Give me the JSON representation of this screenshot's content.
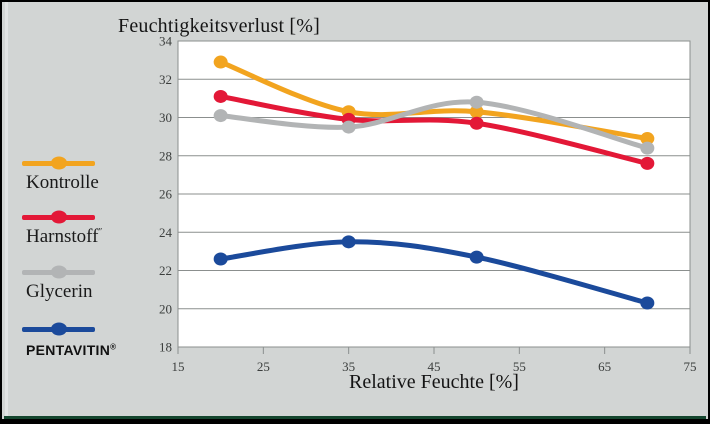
{
  "chart_data": {
    "type": "line",
    "title": "Feuchtigkeitsverlust [%]",
    "xlabel": "Relative Feuchte [%]",
    "ylabel": "",
    "x": [
      20,
      35,
      50,
      70
    ],
    "xlim": [
      15,
      75
    ],
    "ylim": [
      18,
      34
    ],
    "x_ticks": [
      15,
      25,
      35,
      45,
      55,
      65,
      75
    ],
    "y_ticks": [
      18,
      20,
      22,
      24,
      26,
      28,
      30,
      32,
      34
    ],
    "grid": true,
    "smooth_lines": true,
    "legend_position": "left",
    "series": [
      {
        "name": "Kontrolle",
        "mark": "",
        "color": "#F2A41F",
        "values": [
          32.9,
          30.3,
          30.3,
          28.9
        ]
      },
      {
        "name": "Harnstoff",
        "mark": "″",
        "color": "#E31837",
        "values": [
          31.1,
          29.9,
          29.7,
          27.6
        ]
      },
      {
        "name": "Glycerin",
        "mark": "",
        "color": "#B2B4B5",
        "values": [
          30.1,
          29.5,
          30.8,
          28.4
        ]
      },
      {
        "name": "PENTAVITIN",
        "mark": "®",
        "color": "#1B4A9B",
        "values": [
          22.6,
          23.5,
          22.7,
          20.3
        ]
      }
    ]
  },
  "colors": {
    "background": "#d2d5d4",
    "plot_background": "#ffffff",
    "grid": "#8b8f8e",
    "tick_text": "#3b3e3d",
    "text": "#141414",
    "frame_border": "#000000",
    "bottom_strip": "#15462e"
  }
}
